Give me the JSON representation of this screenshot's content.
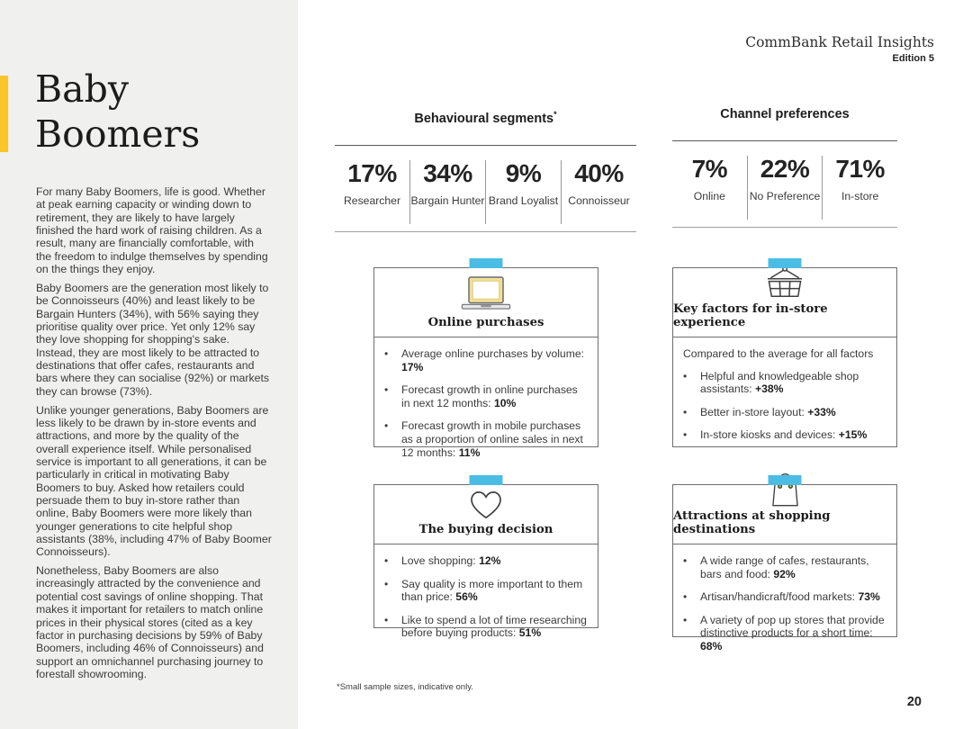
{
  "header": {
    "brand": "CommBank Retail Insights",
    "edition": "Edition 5"
  },
  "page": {
    "number": "20",
    "footnote": "*Small sample sizes, indicative only."
  },
  "sidebar": {
    "title_line1": "Baby",
    "title_line2": "Boomers",
    "paragraphs": [
      "For many Baby Boomers, life is good. Whether at peak earning capacity or winding down to retirement, they are likely to have largely finished the hard work of raising children. As a result, many are financially comfortable, with the freedom to indulge themselves by spending on the things they enjoy.",
      "Baby Boomers are the generation most likely to be Connoisseurs (40%) and least likely to be Bargain Hunters (34%), with 56% saying they prioritise quality over price. Yet only 12% say they love shopping for shopping's sake. Instead, they are most likely to be attracted to destinations that offer cafes, restaurants and bars where they can socialise (92%) or markets they can browse (73%).",
      "Unlike younger generations, Baby Boomers are less likely to be drawn by in-store events and attractions, and more by the quality of the overall experience itself. While personalised service is important to all generations, it can be particularly in critical in motivating Baby Boomers to buy. Asked how retailers could persuade them to buy in-store rather than online, Baby Boomers were more likely than younger generations to cite helpful shop assistants (38%, including 47% of Baby Boomer Connoisseurs).",
      "Nonetheless, Baby Boomers are also increasingly attracted by the convenience and potential cost savings of online shopping. That makes it important for retailers to match online prices in their physical stores (cited as a key factor in purchasing decisions by 59% of Baby Boomers, including 46% of Connoisseurs) and support an omnichannel purchasing journey to forestall showrooming."
    ]
  },
  "segments": {
    "title": "Behavioural segments",
    "superscript": "*",
    "stats": [
      {
        "value": "17%",
        "label": "Researcher"
      },
      {
        "value": "34%",
        "label": "Bargain Hunter"
      },
      {
        "value": "9%",
        "label": "Brand Loyalist"
      },
      {
        "value": "40%",
        "label": "Connoisseur"
      }
    ]
  },
  "channels": {
    "title": "Channel preferences",
    "stats": [
      {
        "value": "7%",
        "label": "Online"
      },
      {
        "value": "22%",
        "label": "No Preference"
      },
      {
        "value": "71%",
        "label": "In-store"
      }
    ]
  },
  "cards": [
    {
      "icon": "laptop-icon",
      "title": "Online purchases",
      "intro": "",
      "bullets": [
        {
          "text": "Average online purchases by volume:",
          "value": "17%"
        },
        {
          "text": "Forecast growth in online purchases in next 12 months:",
          "value": "10%"
        },
        {
          "text": "Forecast growth in mobile purchases as a proportion of online sales in next 12 months:",
          "value": "11%"
        }
      ]
    },
    {
      "icon": "basket-icon",
      "title": "Key factors for in-store experience",
      "intro": "Compared to the average for all factors",
      "bullets": [
        {
          "text": "Helpful and knowledgeable shop assistants:",
          "value": "+38%"
        },
        {
          "text": "Better in-store layout:",
          "value": "+33%"
        },
        {
          "text": "In-store kiosks and devices:",
          "value": "+15%"
        }
      ]
    },
    {
      "icon": "heart-icon",
      "title": "The buying decision",
      "intro": "",
      "bullets": [
        {
          "text": "Love shopping:",
          "value": "12%"
        },
        {
          "text": "Say quality is more important to them than price:",
          "value": "56%"
        },
        {
          "text": "Like to spend a lot of time researching before buying products:",
          "value": "51%"
        }
      ]
    },
    {
      "icon": "shopping-bag-icon",
      "title": "Attractions at shopping destinations",
      "intro": "",
      "bullets": [
        {
          "text": "A wide range of cafes, restaurants, bars and food:",
          "value": "92%"
        },
        {
          "text": "Artisan/handicraft/food markets:",
          "value": "73%"
        },
        {
          "text": "A variety of pop up stores that provide distinctive products for a short time:",
          "value": "68%"
        }
      ]
    }
  ],
  "colors": {
    "accent_yellow": "#FCC42D",
    "accent_blue": "#4BBCE4",
    "sidebar_bg": "#F0F0EE",
    "card_border": "#6D6E71",
    "body_text": "#3B3B3B"
  }
}
